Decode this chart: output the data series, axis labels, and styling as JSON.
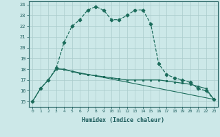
{
  "title": "",
  "xlabel": "Humidex (Indice chaleur)",
  "ylabel": "",
  "xlim": [
    -0.5,
    23.5
  ],
  "ylim": [
    14.5,
    24.3
  ],
  "xticks": [
    0,
    1,
    2,
    3,
    4,
    5,
    6,
    7,
    8,
    9,
    10,
    11,
    12,
    13,
    14,
    15,
    16,
    17,
    18,
    19,
    20,
    21,
    22,
    23
  ],
  "yticks": [
    15,
    16,
    17,
    18,
    19,
    20,
    21,
    22,
    23,
    24
  ],
  "bg_color": "#cce8e8",
  "grid_color": "#aacccc",
  "line_color": "#1a6b5a",
  "line1_x": [
    0,
    1,
    2,
    3,
    4,
    5,
    6,
    7,
    8,
    9,
    10,
    11,
    12,
    13,
    14,
    15,
    16,
    17,
    18,
    19,
    20,
    21,
    22,
    23
  ],
  "line1_y": [
    15.0,
    16.2,
    17.0,
    18.1,
    20.5,
    22.0,
    22.6,
    23.5,
    23.8,
    23.5,
    22.6,
    22.6,
    23.0,
    23.5,
    23.5,
    22.2,
    18.5,
    17.5,
    17.2,
    17.0,
    16.8,
    16.2,
    16.0,
    15.2
  ],
  "line2_x": [
    0,
    1,
    2,
    3,
    4,
    5,
    6,
    7,
    8,
    9,
    10,
    11,
    12,
    13,
    14,
    15,
    16,
    17,
    18,
    19,
    20,
    21,
    22,
    23
  ],
  "line2_y": [
    15.0,
    16.2,
    17.0,
    18.0,
    18.0,
    17.8,
    17.6,
    17.5,
    17.4,
    17.3,
    17.2,
    17.1,
    17.0,
    17.0,
    17.0,
    17.0,
    17.0,
    16.9,
    16.8,
    16.7,
    16.6,
    16.4,
    16.2,
    15.2
  ],
  "line3_x": [
    3,
    23
  ],
  "line3_y": [
    18.1,
    15.2
  ]
}
